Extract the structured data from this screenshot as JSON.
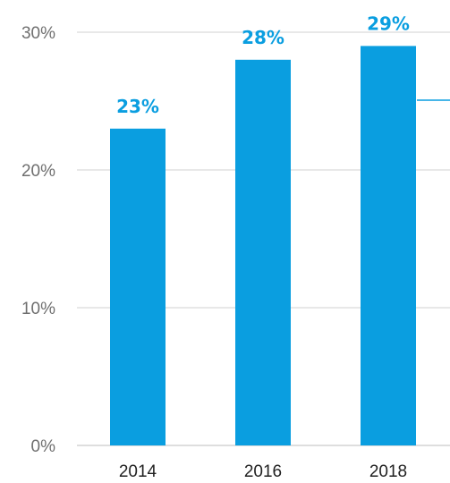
{
  "chart_data": {
    "type": "bar",
    "categories": [
      "2014",
      "2016",
      "2018"
    ],
    "values": [
      23,
      28,
      29
    ],
    "data_labels": [
      "23%",
      "28%",
      "29%"
    ],
    "y_ticks": [
      {
        "value": 0,
        "label": "0%"
      },
      {
        "value": 10,
        "label": "10%"
      },
      {
        "value": 20,
        "label": "20%"
      },
      {
        "value": 30,
        "label": "30%"
      }
    ],
    "ylim": [
      0,
      30
    ],
    "grid": true,
    "legend": "none",
    "colors": {
      "bar": "#0a9ee0",
      "label": "#0a9ee0",
      "grid": "#d0d0d0"
    }
  }
}
